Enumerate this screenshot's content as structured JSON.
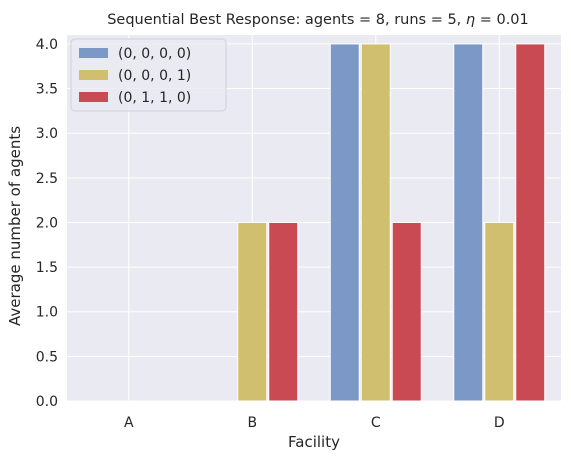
{
  "chart_data": {
    "type": "bar",
    "title_prefix": "Sequential Best Response: agents = 8, runs = 5, ",
    "title_symbol": "η",
    "title_suffix": " = 0.01",
    "xlabel": "Facility",
    "ylabel": "Average number of agents",
    "categories": [
      "A",
      "B",
      "C",
      "D"
    ],
    "ylim": [
      0,
      4.1
    ],
    "yticks": [
      0.0,
      0.5,
      1.0,
      1.5,
      2.0,
      2.5,
      3.0,
      3.5,
      4.0
    ],
    "ytick_labels": [
      "0.0",
      "0.5",
      "1.0",
      "1.5",
      "2.0",
      "2.5",
      "3.0",
      "3.5",
      "4.0"
    ],
    "grid": true,
    "legend_position": "top-left",
    "series": [
      {
        "name": "(0, 0, 0, 0)",
        "color": "#7b98c7",
        "values": [
          0,
          0,
          4,
          4
        ]
      },
      {
        "name": "(0, 0, 0, 1)",
        "color": "#cfbf6e",
        "values": [
          0,
          2,
          4,
          2
        ]
      },
      {
        "name": "(0, 1, 1, 0)",
        "color": "#c94a52",
        "values": [
          0,
          2,
          2,
          4
        ]
      }
    ],
    "plot_background": "#eaeaf2",
    "grid_color": "#ffffff"
  }
}
